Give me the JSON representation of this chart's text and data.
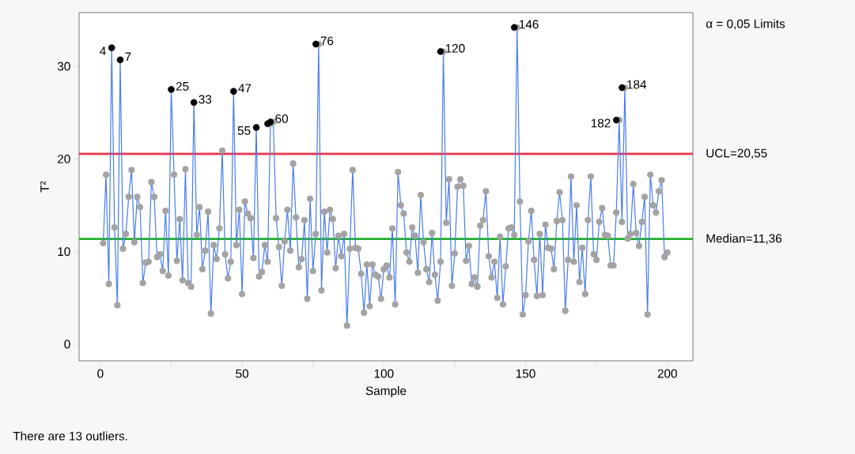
{
  "chart_data": {
    "type": "line",
    "xlabel": "Sample",
    "ylabel": "T²",
    "x": [
      1,
      2,
      3,
      4,
      5,
      6,
      7,
      8,
      9,
      10,
      11,
      12,
      13,
      14,
      15,
      16,
      17,
      18,
      19,
      20,
      21,
      22,
      23,
      24,
      25,
      26,
      27,
      28,
      29,
      30,
      31,
      32,
      33,
      34,
      35,
      36,
      37,
      38,
      39,
      40,
      41,
      42,
      43,
      44,
      45,
      46,
      47,
      48,
      49,
      50,
      51,
      52,
      53,
      54,
      55,
      56,
      57,
      58,
      59,
      60,
      61,
      62,
      63,
      64,
      65,
      66,
      67,
      68,
      69,
      70,
      71,
      72,
      73,
      74,
      75,
      76,
      77,
      78,
      79,
      80,
      81,
      82,
      83,
      84,
      85,
      86,
      87,
      88,
      89,
      90,
      91,
      92,
      93,
      94,
      95,
      96,
      97,
      98,
      99,
      100,
      101,
      102,
      103,
      104,
      105,
      106,
      107,
      108,
      109,
      110,
      111,
      112,
      113,
      114,
      115,
      116,
      117,
      118,
      119,
      120,
      121,
      122,
      123,
      124,
      125,
      126,
      127,
      128,
      129,
      130,
      131,
      132,
      133,
      134,
      135,
      136,
      137,
      138,
      139,
      140,
      141,
      142,
      143,
      144,
      145,
      146,
      147,
      148,
      149,
      150,
      151,
      152,
      153,
      154,
      155,
      156,
      157,
      158,
      159,
      160,
      161,
      162,
      163,
      164,
      165,
      166,
      167,
      168,
      169,
      170,
      171,
      172,
      173,
      174,
      175,
      176,
      177,
      178,
      179,
      180,
      181,
      182,
      183,
      184,
      185,
      186,
      187,
      188,
      189,
      190,
      191,
      192,
      193,
      194,
      195,
      196,
      197,
      198,
      199,
      200
    ],
    "series": [
      {
        "color": "#4a7cf0",
        "marker": "circle",
        "values": [
          10.9,
          18.3,
          6.5,
          32.0,
          12.6,
          4.2,
          30.7,
          10.3,
          11.9,
          15.9,
          18.8,
          11.0,
          15.9,
          14.8,
          6.6,
          8.8,
          8.9,
          17.5,
          15.9,
          9.4,
          9.7,
          7.9,
          14.4,
          7.4,
          27.5,
          18.3,
          9.0,
          13.5,
          6.9,
          18.9,
          6.6,
          6.2,
          26.1,
          11.8,
          14.8,
          8.1,
          10.1,
          14.3,
          3.3,
          10.7,
          9.2,
          12.5,
          20.9,
          9.7,
          7.1,
          8.9,
          27.3,
          10.7,
          14.5,
          5.4,
          15.4,
          14.1,
          13.6,
          9.3,
          23.4,
          7.3,
          7.8,
          10.7,
          8.9,
          23.8,
          24.0,
          13.6,
          10.5,
          6.3,
          11.1,
          14.5,
          10.1,
          19.5,
          13.7,
          8.3,
          9.2,
          13.4,
          4.9,
          15.7,
          7.9,
          11.9,
          32.4,
          5.8,
          14.3,
          9.9,
          14.5,
          13.5,
          8.2,
          11.7,
          9.5,
          11.9,
          2.0,
          10.3,
          18.8,
          10.4,
          10.3,
          7.6,
          3.4,
          8.6,
          4.1,
          8.6,
          7.5,
          7.3,
          4.9,
          8.1,
          8.5,
          7.2,
          12.5,
          4.3,
          18.6,
          15.0,
          14.1,
          9.9,
          8.9,
          12.6,
          11.7,
          7.7,
          16.1,
          11.0,
          8.1,
          6.7,
          12.0,
          7.5,
          4.7,
          8.9,
          31.6,
          13.1,
          17.8,
          6.3,
          9.8,
          17.0,
          17.8,
          17.1,
          9.0,
          10.6,
          6.5,
          7.2,
          6.2,
          12.8,
          13.4,
          16.5,
          9.5,
          7.2,
          8.9,
          5.0,
          11.6,
          4.3,
          8.4,
          12.5,
          12.6,
          11.8,
          34.2,
          15.4,
          3.2,
          5.3,
          11.1,
          14.4,
          9.1,
          5.2,
          11.9,
          5.3,
          12.9,
          10.4,
          10.3,
          8.1,
          13.3,
          16.4,
          13.4,
          3.6,
          9.1,
          18.1,
          8.9,
          15.0,
          6.7,
          10.4,
          5.4,
          13.4,
          18.1,
          9.7,
          9.1,
          13.2,
          14.7,
          11.8,
          11.7,
          8.5,
          8.5,
          14.2,
          24.2,
          13.2,
          27.7,
          11.4,
          11.9,
          17.3,
          12.0,
          10.6,
          13.2,
          15.9,
          3.2,
          18.3,
          15.0,
          14.2,
          16.5,
          17.7,
          9.4,
          9.9
        ]
      },
      {
        "type": "scatter",
        "color": "#000000",
        "marker": "circle",
        "x": [
          4,
          7,
          25,
          33,
          47,
          55,
          59,
          60,
          76,
          120,
          146,
          182,
          184
        ],
        "values": [
          32.0,
          30.7,
          27.5,
          26.1,
          27.3,
          23.4,
          23.8,
          24.0,
          32.4,
          31.6,
          34.2,
          24.2,
          27.7
        ]
      }
    ],
    "xlim": [
      -7.5,
      209
    ],
    "ylim": [
      -1.8,
      35.8
    ],
    "xticks": [
      0,
      {
        "value": 25,
        "label": null
      },
      50,
      {
        "value": 75,
        "label": null
      },
      100,
      {
        "value": 125,
        "label": null
      },
      150,
      {
        "value": 175,
        "label": null
      },
      200
    ],
    "yticks": [
      0,
      10,
      20,
      30
    ],
    "ref_lines": [
      {
        "axis": "y",
        "value": 20.55,
        "label": "UCL=20,55",
        "color": "#e8334a"
      },
      {
        "axis": "y",
        "value": 11.36,
        "label": "Median=11,36",
        "color": "#22b02a"
      }
    ],
    "annotations": [
      "α = 0,05 Limits",
      "There are 13 outliers.",
      {
        "text": "4",
        "x": 4,
        "y": 32.0
      },
      {
        "text": "7",
        "x": 7,
        "y": 30.7
      },
      {
        "text": "25",
        "x": 25,
        "y": 27.5
      },
      {
        "text": "33",
        "x": 33,
        "y": 26.1
      },
      {
        "text": "47",
        "x": 47,
        "y": 27.3
      },
      {
        "text": "55",
        "x": 55,
        "y": 23.4
      },
      {
        "text": "60",
        "x": 60,
        "y": 24.0
      },
      {
        "text": "76",
        "x": 76,
        "y": 32.4
      },
      {
        "text": "120",
        "x": 120,
        "y": 31.6
      },
      {
        "text": "146",
        "x": 146,
        "y": 34.2
      },
      {
        "text": "182",
        "x": 182,
        "y": 24.2
      },
      {
        "text": "184",
        "x": 184,
        "y": 27.7
      }
    ]
  }
}
